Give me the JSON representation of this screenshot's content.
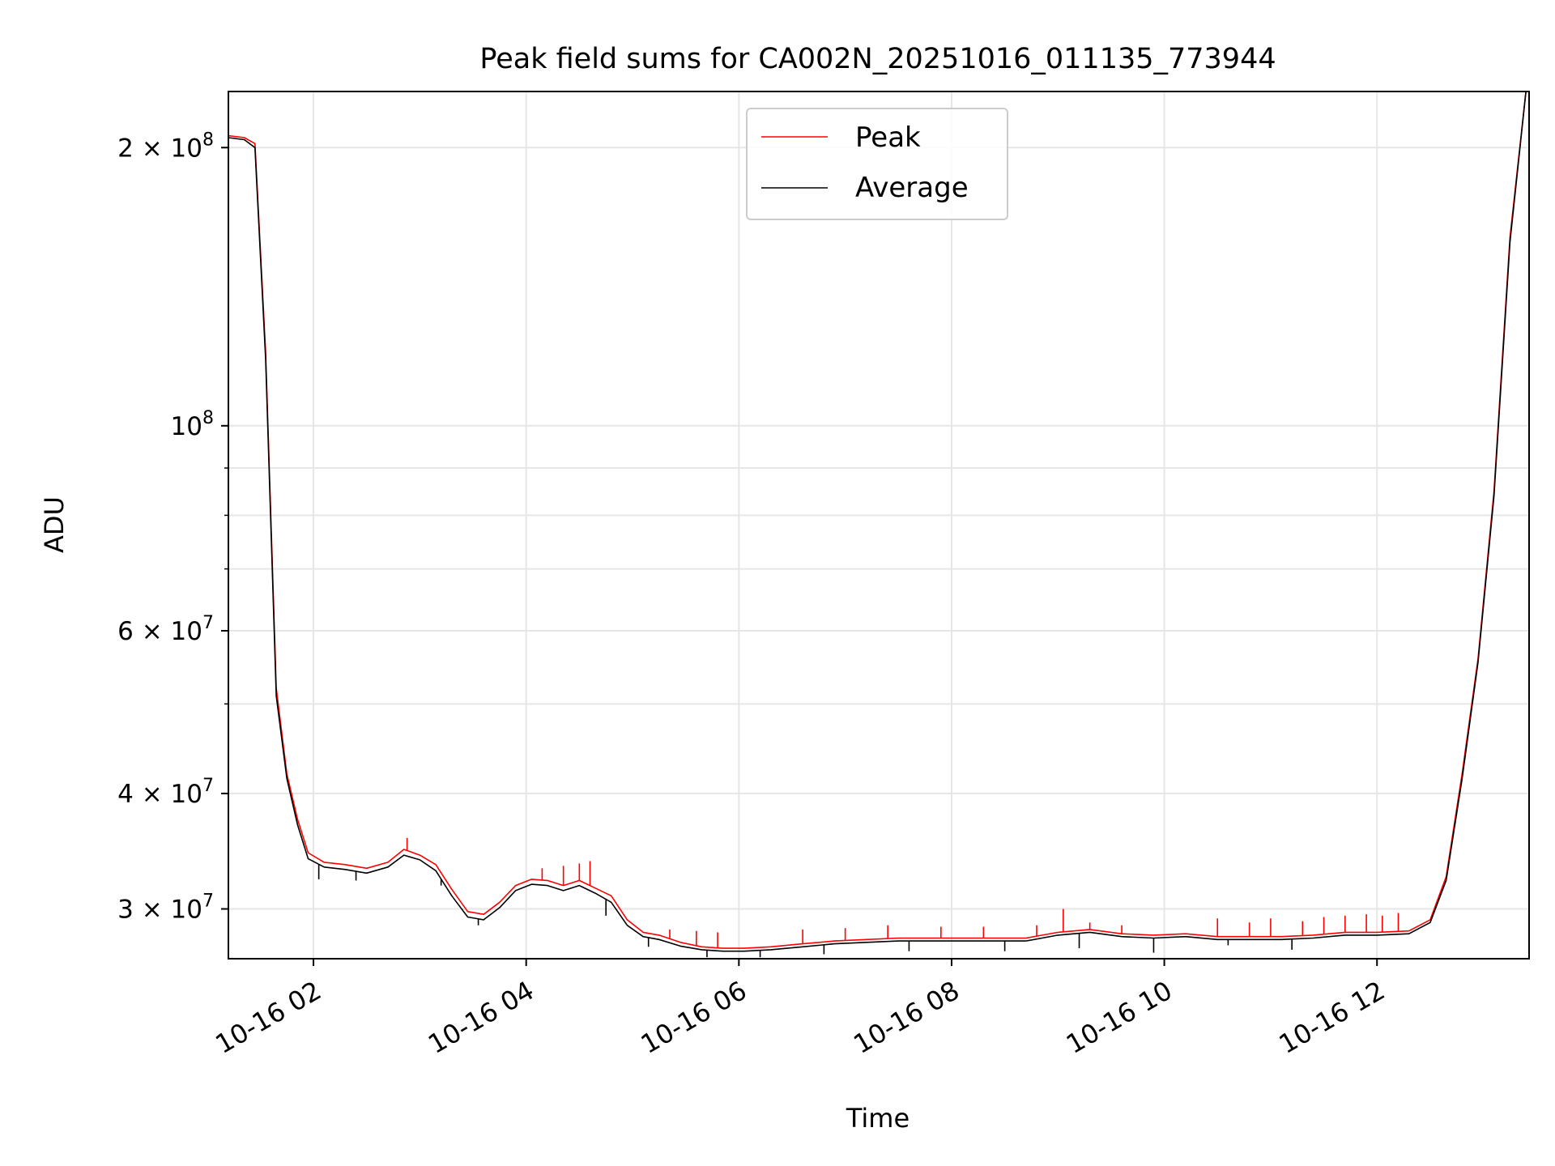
{
  "chart_data": {
    "type": "line",
    "title": "Peak field sums for CA002N_20251016_011135_773944",
    "xlabel": "Time",
    "ylabel": "ADU",
    "yscale": "log",
    "ylim": [
      26500000,
      230000000
    ],
    "xlim_hours": [
      1.2,
      13.43
    ],
    "grid": true,
    "legend_position": "upper-center",
    "x_ticks": [
      {
        "hour": 2,
        "label": "10-16 02"
      },
      {
        "hour": 4,
        "label": "10-16 04"
      },
      {
        "hour": 6,
        "label": "10-16 06"
      },
      {
        "hour": 8,
        "label": "10-16 08"
      },
      {
        "hour": 10,
        "label": "10-16 10"
      },
      {
        "hour": 12,
        "label": "10-16 12"
      }
    ],
    "y_ticks": [
      {
        "value": 30000000,
        "base": "3 × 10",
        "exp": "7"
      },
      {
        "value": 40000000,
        "base": "4 × 10",
        "exp": "7"
      },
      {
        "value": 60000000,
        "base": "6 × 10",
        "exp": "7"
      },
      {
        "value": 100000000,
        "base": "10",
        "exp": "8"
      },
      {
        "value": 200000000,
        "base": "2 × 10",
        "exp": "8"
      }
    ],
    "y_minor_ticks": [
      50000000,
      70000000,
      80000000,
      90000000
    ],
    "series": [
      {
        "name": "Peak",
        "color": "#ff0000",
        "x_hours": [
          1.2,
          1.35,
          1.45,
          1.55,
          1.65,
          1.75,
          1.85,
          1.95,
          2.1,
          2.3,
          2.5,
          2.7,
          2.85,
          3.0,
          3.15,
          3.3,
          3.45,
          3.6,
          3.75,
          3.9,
          4.05,
          4.2,
          4.35,
          4.5,
          4.65,
          4.8,
          4.95,
          5.1,
          5.25,
          5.45,
          5.65,
          5.85,
          6.05,
          6.3,
          6.6,
          6.9,
          7.2,
          7.5,
          7.8,
          8.1,
          8.4,
          8.7,
          9.0,
          9.3,
          9.6,
          9.9,
          10.2,
          10.5,
          10.8,
          11.1,
          11.4,
          11.7,
          12.0,
          12.3,
          12.5,
          12.65,
          12.8,
          12.95,
          13.1,
          13.25,
          13.4,
          13.43
        ],
        "values": [
          206000000,
          205000000,
          202000000,
          120000000,
          52000000,
          42000000,
          37500000,
          34500000,
          33700000,
          33500000,
          33200000,
          33700000,
          34800000,
          34300000,
          33500000,
          31500000,
          29800000,
          29600000,
          30500000,
          31800000,
          32300000,
          32200000,
          31800000,
          32200000,
          31600000,
          31000000,
          29200000,
          28300000,
          28100000,
          27600000,
          27300000,
          27200000,
          27200000,
          27300000,
          27500000,
          27700000,
          27800000,
          27900000,
          27900000,
          27900000,
          27900000,
          27900000,
          28300000,
          28500000,
          28200000,
          28100000,
          28200000,
          28000000,
          28000000,
          28000000,
          28100000,
          28300000,
          28300000,
          28400000,
          29200000,
          32500000,
          42000000,
          56000000,
          85000000,
          160000000,
          230000000,
          230000000
        ],
        "spikes": [
          {
            "hour": 2.88,
            "value": 35800000
          },
          {
            "hour": 4.15,
            "value": 33200000
          },
          {
            "hour": 4.35,
            "value": 33400000
          },
          {
            "hour": 4.5,
            "value": 33600000
          },
          {
            "hour": 4.6,
            "value": 33800000
          },
          {
            "hour": 5.35,
            "value": 28500000
          },
          {
            "hour": 5.6,
            "value": 28400000
          },
          {
            "hour": 5.8,
            "value": 28300000
          },
          {
            "hour": 6.6,
            "value": 28500000
          },
          {
            "hour": 7.0,
            "value": 28600000
          },
          {
            "hour": 7.4,
            "value": 28800000
          },
          {
            "hour": 7.9,
            "value": 28700000
          },
          {
            "hour": 8.3,
            "value": 28700000
          },
          {
            "hour": 8.8,
            "value": 28800000
          },
          {
            "hour": 9.05,
            "value": 30000000
          },
          {
            "hour": 9.3,
            "value": 29000000
          },
          {
            "hour": 9.6,
            "value": 28800000
          },
          {
            "hour": 10.5,
            "value": 29300000
          },
          {
            "hour": 10.8,
            "value": 29000000
          },
          {
            "hour": 11.0,
            "value": 29300000
          },
          {
            "hour": 11.3,
            "value": 29100000
          },
          {
            "hour": 11.5,
            "value": 29400000
          },
          {
            "hour": 11.7,
            "value": 29500000
          },
          {
            "hour": 11.9,
            "value": 29600000
          },
          {
            "hour": 12.05,
            "value": 29500000
          },
          {
            "hour": 12.2,
            "value": 29700000
          }
        ]
      },
      {
        "name": "Average",
        "color": "#000000",
        "x_hours": [
          1.2,
          1.35,
          1.45,
          1.55,
          1.65,
          1.75,
          1.85,
          1.95,
          2.1,
          2.3,
          2.5,
          2.7,
          2.85,
          3.0,
          3.15,
          3.3,
          3.45,
          3.6,
          3.75,
          3.9,
          4.05,
          4.2,
          4.35,
          4.5,
          4.65,
          4.8,
          4.95,
          5.1,
          5.25,
          5.45,
          5.65,
          5.85,
          6.05,
          6.3,
          6.6,
          6.9,
          7.2,
          7.5,
          7.8,
          8.1,
          8.4,
          8.7,
          9.0,
          9.3,
          9.6,
          9.9,
          10.2,
          10.5,
          10.8,
          11.1,
          11.4,
          11.7,
          12.0,
          12.3,
          12.5,
          12.65,
          12.8,
          12.95,
          13.1,
          13.25,
          13.4,
          13.43
        ],
        "values": [
          205000000,
          204000000,
          200000000,
          118000000,
          51000000,
          41500000,
          37000000,
          34000000,
          33300000,
          33100000,
          32800000,
          33300000,
          34300000,
          33900000,
          33000000,
          31000000,
          29400000,
          29200000,
          30100000,
          31400000,
          31900000,
          31800000,
          31400000,
          31800000,
          31200000,
          30500000,
          28800000,
          28000000,
          27800000,
          27350000,
          27100000,
          27000000,
          27000000,
          27100000,
          27300000,
          27500000,
          27600000,
          27700000,
          27700000,
          27700000,
          27700000,
          27700000,
          28100000,
          28300000,
          28000000,
          27900000,
          28000000,
          27800000,
          27800000,
          27800000,
          27900000,
          28100000,
          28100000,
          28200000,
          29000000,
          32200000,
          41500000,
          55500000,
          84000000,
          158000000,
          230000000,
          230000000
        ],
        "dips": [
          {
            "hour": 2.05,
            "value": 32300000
          },
          {
            "hour": 2.4,
            "value": 32200000
          },
          {
            "hour": 3.2,
            "value": 31800000
          },
          {
            "hour": 3.4,
            "value": 30000000
          },
          {
            "hour": 3.55,
            "value": 28800000
          },
          {
            "hour": 4.75,
            "value": 29500000
          },
          {
            "hour": 5.15,
            "value": 27300000
          },
          {
            "hour": 5.7,
            "value": 26600000
          },
          {
            "hour": 6.2,
            "value": 26600000
          },
          {
            "hour": 6.8,
            "value": 26800000
          },
          {
            "hour": 7.6,
            "value": 27000000
          },
          {
            "hour": 8.5,
            "value": 27000000
          },
          {
            "hour": 9.2,
            "value": 27200000
          },
          {
            "hour": 9.9,
            "value": 26900000
          },
          {
            "hour": 10.6,
            "value": 27400000
          },
          {
            "hour": 11.2,
            "value": 27100000
          }
        ]
      }
    ]
  }
}
